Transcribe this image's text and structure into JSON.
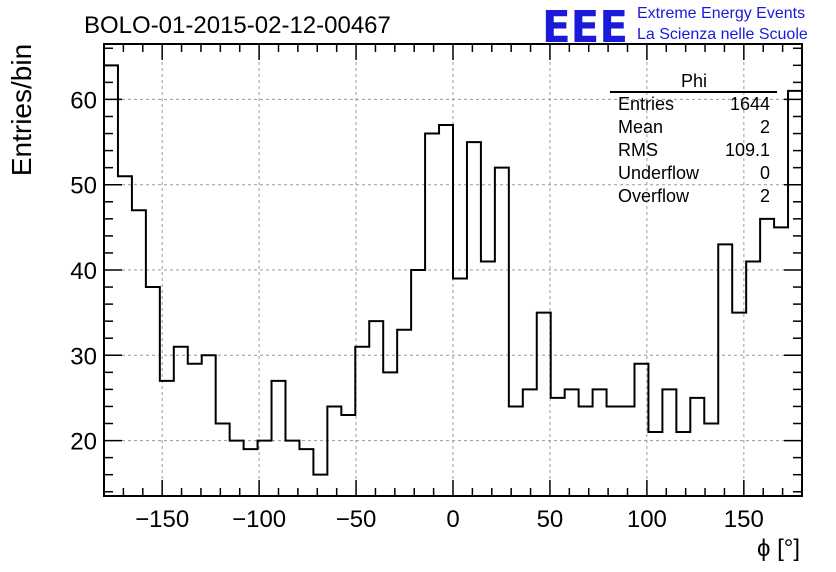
{
  "chart_data": {
    "type": "bar",
    "title": "BOLO-01-2015-02-12-00467",
    "xlabel": "ϕ [°]",
    "ylabel": "Entries/bin",
    "xlim": [
      -180,
      180
    ],
    "ylim": [
      13.5,
      66.5
    ],
    "grid": true,
    "bin_width": 7.2,
    "x_ticks": [
      -150,
      -100,
      -50,
      0,
      50,
      100,
      150
    ],
    "y_ticks": [
      20,
      30,
      40,
      50,
      60
    ],
    "x_tick_labels": [
      "−150",
      "−100",
      "−50",
      "0",
      "50",
      "100",
      "150"
    ],
    "y_tick_labels": [
      "20",
      "30",
      "40",
      "50",
      "60"
    ],
    "values": [
      64,
      51,
      47,
      38,
      27,
      31,
      29,
      30,
      22,
      20,
      19,
      20,
      27,
      20,
      19,
      16,
      24,
      23,
      31,
      34,
      28,
      33,
      40,
      56,
      57,
      39,
      55,
      41,
      52,
      24,
      26,
      35,
      25,
      26,
      24,
      26,
      24,
      24,
      29,
      21,
      26,
      21,
      25,
      22,
      43,
      35,
      41,
      46,
      45,
      61
    ],
    "stats": {
      "title": "Phi",
      "rows": [
        {
          "label": "Entries",
          "value": "1644"
        },
        {
          "label": "Mean",
          "value": "2"
        },
        {
          "label": "RMS",
          "value": "109.1"
        },
        {
          "label": "Underflow",
          "value": "0"
        },
        {
          "label": "Overflow",
          "value": "2"
        }
      ]
    }
  },
  "logo": {
    "mark": "EEE",
    "line1": "Extreme Energy Events",
    "line2": "La Scienza nelle Scuole",
    "color": "#1a1ad8"
  }
}
